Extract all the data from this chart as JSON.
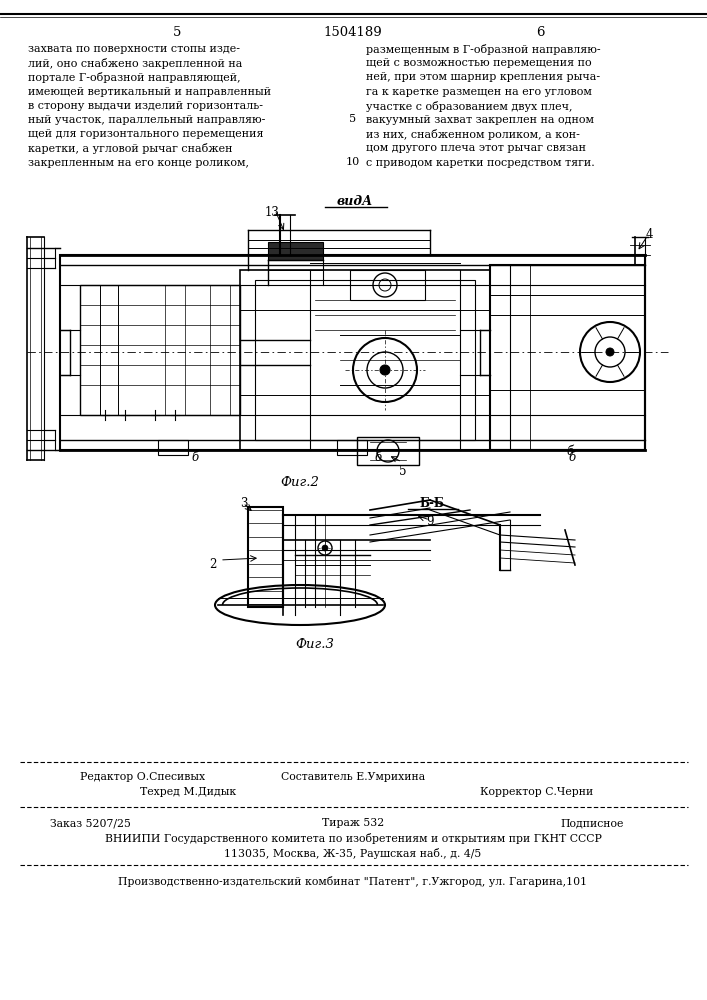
{
  "title_center": "1504189",
  "page_left": "5",
  "page_right": "6",
  "top_text_left": [
    "захвата по поверхности стопы изде-",
    "лий, оно снабжено закрепленной на",
    "портале Г-образной направляющей,",
    "имеющей вертикальный и направленный",
    "в сторону выдачи изделий горизонталь-",
    "ный участок, параллельный направляю-",
    "щей для горизонтального перемещения",
    "каретки, а угловой рычаг снабжен",
    "закрепленным на его конце роликом,"
  ],
  "top_text_right": [
    "размещенным в Г-образной направляю-",
    "щей с возможностью перемещения по",
    "ней, при этом шарнир крепления рыча-",
    "га к каретке размещен на его угловом",
    "участке с образованием двух плеч,",
    "вакуумный захват закреплен на одном",
    "из них, снабженном роликом, а кон-",
    "цом другого плеча этот рычаг связан",
    "с приводом каретки посредством тяги."
  ],
  "fig2_label": "Фиг.2",
  "fig3_label": "Фиг.3",
  "vida_label": "видА",
  "bb_label": "Б-Б",
  "editor_line": "Редактор О.Спесивых",
  "composer_line": "Составитель Е.Умрихина",
  "techred_line": "Техред М.Дидык",
  "corrector_line": "Корректор С.Черни",
  "order_line": "Заказ 5207/25",
  "tirazh_line": "Тираж 532",
  "podpisnoe_line": "Подписное",
  "vniiipi_line": "ВНИИПИ Государственного комитета по изобретениям и открытиям при ГКНТ СССР",
  "address_line": "113035, Москва, Ж-35, Раушская наб., д. 4/5",
  "patent_line": "Производственно-издательский комбинат \"Патент\", г.Ужгород, ул. Гагарина,101"
}
